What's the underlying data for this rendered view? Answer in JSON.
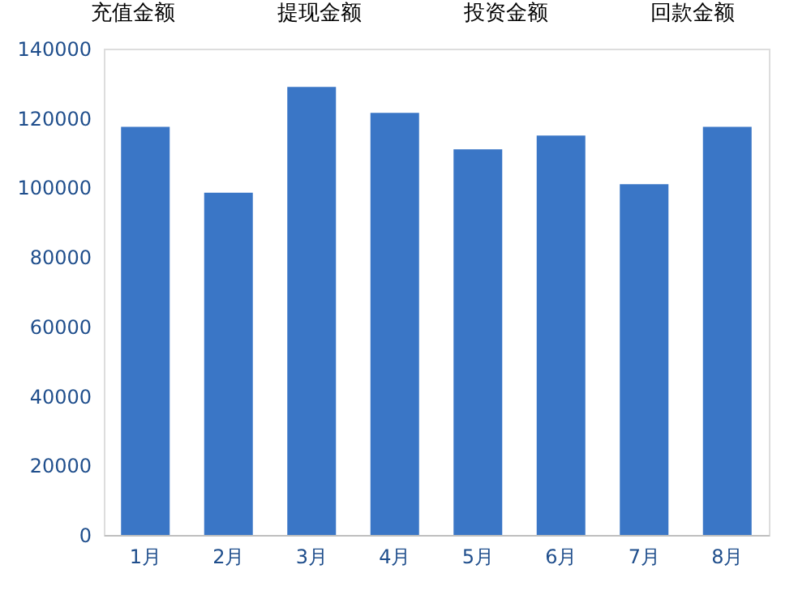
{
  "chart_data": {
    "type": "bar",
    "categories": [
      "1月",
      "2月",
      "3月",
      "4月",
      "5月",
      "6月",
      "7月",
      "8月"
    ],
    "values": [
      117500,
      98500,
      129000,
      121500,
      111000,
      115000,
      101000,
      117500
    ],
    "color": "#3a76c6",
    "ylim": [
      0,
      140000
    ],
    "yticks": [
      0,
      20000,
      40000,
      60000,
      80000,
      100000,
      120000,
      140000
    ],
    "grid": false,
    "annotations": [
      "充值金额",
      "提现金额",
      "投资金额",
      "回款金额"
    ]
  }
}
